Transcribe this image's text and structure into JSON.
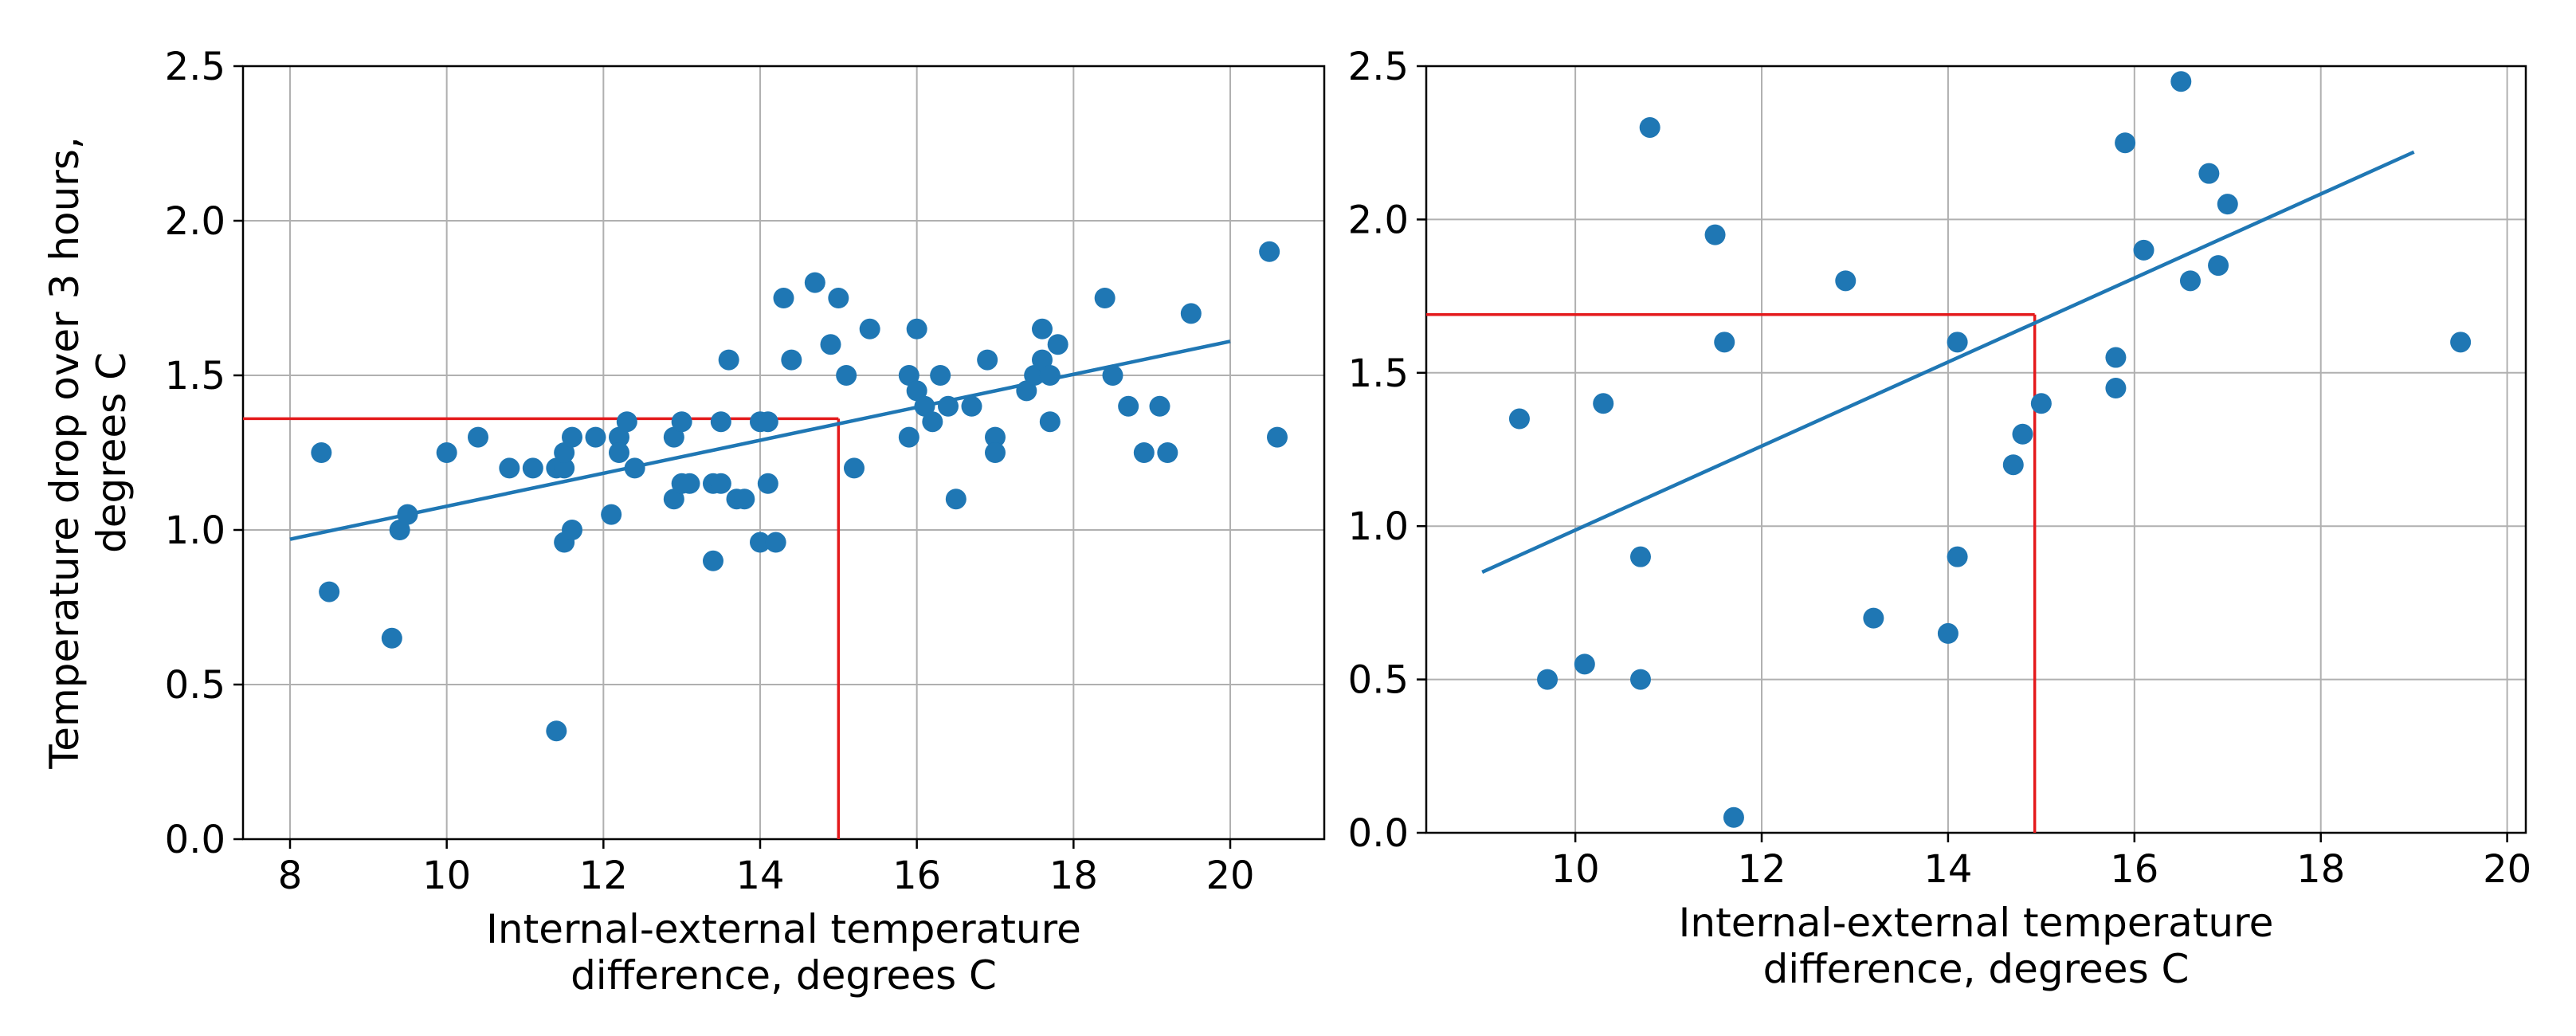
{
  "colors": {
    "points": "#1f77b4",
    "fit_line": "#1f77b4",
    "guide_lines": "#e41a1c",
    "grid": "#b0b0b0",
    "axes": "#000000"
  },
  "chart_data": [
    {
      "type": "scatter",
      "title": "",
      "xlabel": [
        "Internal-external temperature",
        "difference, degrees C"
      ],
      "ylabel": [
        "Temperature drop over 3 hours,",
        "degrees C"
      ],
      "xlim": [
        7.4,
        21.2
      ],
      "ylim": [
        0.0,
        2.5
      ],
      "xticks": [
        "8",
        "10",
        "12",
        "14",
        "16",
        "18",
        "20"
      ],
      "yticks": [
        "0.0",
        "0.5",
        "1.0",
        "1.5",
        "2.0",
        "2.5"
      ],
      "grid": true,
      "points": [
        [
          8.4,
          1.25
        ],
        [
          8.5,
          0.8
        ],
        [
          9.3,
          0.65
        ],
        [
          9.4,
          1.0
        ],
        [
          9.5,
          1.05
        ],
        [
          10.0,
          1.25
        ],
        [
          10.4,
          1.3
        ],
        [
          10.8,
          1.2
        ],
        [
          11.1,
          1.2
        ],
        [
          11.4,
          0.35
        ],
        [
          11.4,
          1.2
        ],
        [
          11.5,
          1.2
        ],
        [
          11.5,
          1.25
        ],
        [
          11.5,
          0.96
        ],
        [
          11.6,
          1.0
        ],
        [
          11.6,
          1.3
        ],
        [
          11.9,
          1.3
        ],
        [
          12.1,
          1.05
        ],
        [
          12.2,
          1.3
        ],
        [
          12.2,
          1.25
        ],
        [
          12.3,
          1.35
        ],
        [
          12.4,
          1.2
        ],
        [
          12.9,
          1.1
        ],
        [
          12.9,
          1.3
        ],
        [
          13.0,
          1.35
        ],
        [
          13.0,
          1.15
        ],
        [
          13.1,
          1.15
        ],
        [
          13.4,
          1.15
        ],
        [
          13.4,
          0.9
        ],
        [
          13.5,
          1.35
        ],
        [
          13.5,
          1.15
        ],
        [
          13.6,
          1.55
        ],
        [
          13.7,
          1.1
        ],
        [
          13.8,
          1.1
        ],
        [
          14.0,
          1.35
        ],
        [
          14.0,
          0.96
        ],
        [
          14.1,
          1.15
        ],
        [
          14.1,
          1.35
        ],
        [
          14.2,
          0.96
        ],
        [
          14.3,
          1.75
        ],
        [
          14.4,
          1.55
        ],
        [
          14.7,
          1.8
        ],
        [
          14.9,
          1.6
        ],
        [
          15.0,
          1.75
        ],
        [
          15.1,
          1.5
        ],
        [
          15.2,
          1.2
        ],
        [
          15.4,
          1.65
        ],
        [
          15.9,
          1.5
        ],
        [
          15.9,
          1.3
        ],
        [
          16.0,
          1.45
        ],
        [
          16.0,
          1.65
        ],
        [
          16.1,
          1.4
        ],
        [
          16.2,
          1.35
        ],
        [
          16.3,
          1.5
        ],
        [
          16.4,
          1.4
        ],
        [
          16.5,
          1.1
        ],
        [
          16.7,
          1.4
        ],
        [
          16.9,
          1.55
        ],
        [
          17.0,
          1.3
        ],
        [
          17.0,
          1.25
        ],
        [
          17.4,
          1.45
        ],
        [
          17.5,
          1.5
        ],
        [
          17.6,
          1.55
        ],
        [
          17.6,
          1.65
        ],
        [
          17.7,
          1.35
        ],
        [
          17.7,
          1.5
        ],
        [
          17.8,
          1.6
        ],
        [
          18.4,
          1.75
        ],
        [
          18.5,
          1.5
        ],
        [
          18.7,
          1.4
        ],
        [
          18.9,
          1.25
        ],
        [
          19.1,
          1.4
        ],
        [
          19.2,
          1.25
        ],
        [
          19.5,
          1.7
        ],
        [
          20.5,
          1.9
        ],
        [
          20.6,
          1.3
        ]
      ],
      "fit_line": {
        "x": [
          8.0,
          20.0
        ],
        "y": [
          0.97,
          1.61
        ]
      },
      "guide_lines": {
        "x": 15.0,
        "y": 1.36
      }
    },
    {
      "type": "scatter",
      "title": "",
      "xlabel": [
        "Internal-external temperature",
        "difference, degrees C"
      ],
      "ylabel": [],
      "xlim": [
        8.4,
        20.2
      ],
      "ylim": [
        0.0,
        2.5
      ],
      "xticks": [
        "10",
        "12",
        "14",
        "16",
        "18",
        "20"
      ],
      "yticks": [
        "0.0",
        "0.5",
        "1.0",
        "1.5",
        "2.0",
        "2.5"
      ],
      "grid": true,
      "points": [
        [
          9.4,
          1.35
        ],
        [
          9.7,
          0.5
        ],
        [
          10.1,
          0.55
        ],
        [
          10.3,
          1.4
        ],
        [
          10.7,
          0.9
        ],
        [
          10.7,
          0.5
        ],
        [
          10.8,
          2.3
        ],
        [
          11.5,
          1.95
        ],
        [
          11.6,
          1.6
        ],
        [
          11.7,
          0.05
        ],
        [
          12.9,
          1.8
        ],
        [
          13.2,
          0.7
        ],
        [
          14.0,
          0.65
        ],
        [
          14.1,
          1.6
        ],
        [
          14.1,
          0.9
        ],
        [
          14.7,
          1.2
        ],
        [
          14.8,
          1.3
        ],
        [
          15.0,
          1.4
        ],
        [
          15.8,
          1.45
        ],
        [
          15.8,
          1.55
        ],
        [
          15.9,
          2.25
        ],
        [
          16.1,
          1.9
        ],
        [
          16.5,
          2.45
        ],
        [
          16.6,
          1.8
        ],
        [
          16.8,
          2.15
        ],
        [
          16.9,
          1.85
        ],
        [
          17.0,
          2.05
        ],
        [
          19.5,
          1.6
        ]
      ],
      "fit_line": {
        "x": [
          9.0,
          19.0
        ],
        "y": [
          0.85,
          2.22
        ]
      },
      "guide_lines": {
        "x": 14.93,
        "y": 1.69
      }
    }
  ]
}
